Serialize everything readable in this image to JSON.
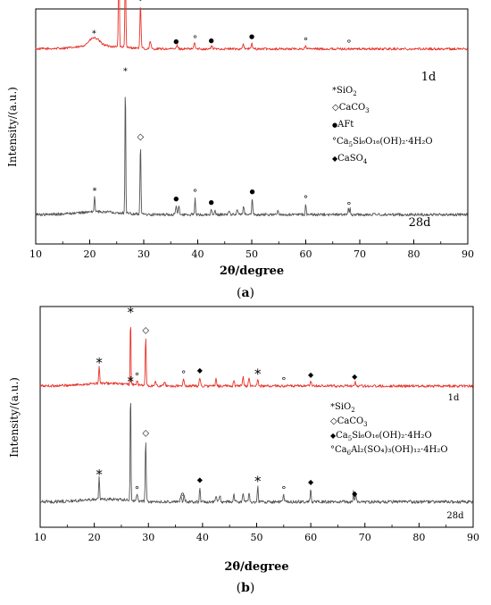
{
  "chart_data": [
    {
      "type": "line",
      "panel_label": "(a)",
      "xlabel": "2θ/degree",
      "ylabel": "Intensity/(a.u.)",
      "xlim": [
        10,
        90
      ],
      "xticks": [
        10,
        20,
        30,
        40,
        50,
        60,
        70,
        80,
        90
      ],
      "series": [
        {
          "name": "1d",
          "color": "#e8332a",
          "baseline": 0.83,
          "noise": 0.01,
          "peaks": [
            [
              20.8,
              0.035,
              1.4
            ],
            [
              25.4,
              0.46,
              0.12
            ],
            [
              26.6,
              0.37,
              0.12
            ],
            [
              29.4,
              0.19,
              0.14
            ],
            [
              31.2,
              0.03,
              0.2
            ],
            [
              36.2,
              0.015,
              0.2
            ],
            [
              39.4,
              0.03,
              0.15
            ],
            [
              42.6,
              0.012,
              0.2
            ],
            [
              48.4,
              0.018,
              0.2
            ],
            [
              50.0,
              0.025,
              0.15
            ],
            [
              60.0,
              0.01,
              0.2
            ]
          ]
        },
        {
          "name": "28d",
          "color": "#555555",
          "baseline": 0.125,
          "noise": 0.012,
          "peaks": [
            [
              20.9,
              0.07,
              0.12
            ],
            [
              26.6,
              0.58,
              0.1
            ],
            [
              29.4,
              0.3,
              0.12
            ],
            [
              36.0,
              0.04,
              0.13
            ],
            [
              36.5,
              0.04,
              0.13
            ],
            [
              39.5,
              0.07,
              0.12
            ],
            [
              42.5,
              0.025,
              0.15
            ],
            [
              43.2,
              0.02,
              0.15
            ],
            [
              45.8,
              0.02,
              0.15
            ],
            [
              47.3,
              0.025,
              0.15
            ],
            [
              48.5,
              0.035,
              0.15
            ],
            [
              50.1,
              0.07,
              0.12
            ],
            [
              54.9,
              0.02,
              0.15
            ],
            [
              60.0,
              0.045,
              0.12
            ],
            [
              67.9,
              0.03,
              0.12
            ],
            [
              68.2,
              0.025,
              0.12
            ]
          ]
        }
      ],
      "markers": [
        {
          "symbol": "◆",
          "x": 25.4,
          "series": 0
        },
        {
          "symbol": "*",
          "x": 26.6,
          "series": 0
        },
        {
          "symbol": "*",
          "x": 20.8,
          "series": 0
        },
        {
          "symbol": "◇",
          "x": 29.4,
          "series": 0
        },
        {
          "symbol": "●",
          "x": 36.0,
          "series": 0
        },
        {
          "symbol": "°",
          "x": 39.5,
          "series": 0
        },
        {
          "symbol": "●",
          "x": 42.5,
          "series": 0
        },
        {
          "symbol": "●",
          "x": 50.0,
          "series": 0
        },
        {
          "symbol": "°",
          "x": 60.0,
          "series": 0
        },
        {
          "symbol": "°",
          "x": 68.0,
          "series": 0
        },
        {
          "symbol": "*",
          "x": 26.6,
          "series": 1
        },
        {
          "symbol": "*",
          "x": 20.9,
          "series": 1
        },
        {
          "symbol": "◇",
          "x": 29.4,
          "series": 1
        },
        {
          "symbol": "●",
          "x": 36.0,
          "series": 1
        },
        {
          "symbol": "°",
          "x": 39.5,
          "series": 1
        },
        {
          "symbol": "●",
          "x": 42.5,
          "series": 1
        },
        {
          "symbol": "●",
          "x": 50.1,
          "series": 1
        },
        {
          "symbol": "°",
          "x": 60.0,
          "series": 1
        },
        {
          "symbol": "°",
          "x": 68.0,
          "series": 1
        }
      ],
      "legend": [
        {
          "symbol": "*",
          "label": "SiO",
          "sub": "2",
          "rest": ""
        },
        {
          "symbol": "◇",
          "label": "CaCO",
          "sub": "3",
          "rest": ""
        },
        {
          "symbol": "●",
          "label": "AFt",
          "sub": "",
          "rest": ""
        },
        {
          "symbol": "°",
          "label": "Ca",
          "sub": "5",
          "rest": "Si₆O₁₆(OH)₂·4H₂O"
        },
        {
          "symbol": "◆",
          "label": "CaSO",
          "sub": "4",
          "rest": ""
        }
      ],
      "series_labels": [
        "1d",
        "28d"
      ]
    },
    {
      "type": "line",
      "panel_label": "(b)",
      "xlabel": "2θ/degree",
      "ylabel": "Intensity/(a.u.)",
      "xlim": [
        10,
        90
      ],
      "xticks": [
        10,
        20,
        30,
        40,
        50,
        60,
        70,
        80,
        90
      ],
      "series": [
        {
          "name": "1d",
          "color": "#e8332a",
          "baseline": 0.64,
          "noise": 0.012,
          "peaks": [
            [
              20.9,
              0.08,
              0.12
            ],
            [
              26.7,
              0.31,
              0.1
            ],
            [
              27.9,
              0.02,
              0.15
            ],
            [
              29.5,
              0.22,
              0.12
            ],
            [
              31.3,
              0.02,
              0.2
            ],
            [
              33.0,
              0.02,
              0.2
            ],
            [
              36.5,
              0.03,
              0.15
            ],
            [
              39.5,
              0.04,
              0.15
            ],
            [
              42.5,
              0.03,
              0.15
            ],
            [
              45.8,
              0.03,
              0.15
            ],
            [
              47.5,
              0.04,
              0.15
            ],
            [
              48.6,
              0.04,
              0.15
            ],
            [
              50.2,
              0.03,
              0.15
            ],
            [
              60.0,
              0.02,
              0.15
            ],
            [
              68.2,
              0.02,
              0.15
            ]
          ]
        },
        {
          "name": "28d",
          "color": "#555555",
          "baseline": 0.115,
          "noise": 0.014,
          "peaks": [
            [
              20.9,
              0.1,
              0.12
            ],
            [
              26.7,
              0.52,
              0.1
            ],
            [
              27.9,
              0.03,
              0.15
            ],
            [
              29.5,
              0.28,
              0.12
            ],
            [
              36.0,
              0.03,
              0.15
            ],
            [
              36.6,
              0.03,
              0.15
            ],
            [
              39.5,
              0.07,
              0.12
            ],
            [
              42.5,
              0.03,
              0.15
            ],
            [
              43.2,
              0.03,
              0.15
            ],
            [
              45.8,
              0.03,
              0.15
            ],
            [
              47.5,
              0.04,
              0.15
            ],
            [
              48.6,
              0.04,
              0.15
            ],
            [
              50.2,
              0.07,
              0.12
            ],
            [
              55.0,
              0.03,
              0.15
            ],
            [
              60.0,
              0.06,
              0.12
            ],
            [
              67.9,
              0.05,
              0.12
            ],
            [
              68.3,
              0.04,
              0.12
            ]
          ]
        }
      ],
      "markers": [
        {
          "symbol": "*",
          "x": 20.9,
          "series": 0
        },
        {
          "symbol": "*",
          "x": 26.7,
          "series": 0
        },
        {
          "symbol": "°",
          "x": 27.9,
          "series": 0
        },
        {
          "symbol": "◇",
          "x": 29.5,
          "series": 0
        },
        {
          "symbol": "°",
          "x": 36.5,
          "series": 0
        },
        {
          "symbol": "◆",
          "x": 39.5,
          "series": 0
        },
        {
          "symbol": "*",
          "x": 50.2,
          "series": 0
        },
        {
          "symbol": "°",
          "x": 55.0,
          "series": 0
        },
        {
          "symbol": "◆",
          "x": 60.0,
          "series": 0
        },
        {
          "symbol": "◆",
          "x": 68.1,
          "series": 0
        },
        {
          "symbol": "*",
          "x": 20.9,
          "series": 1
        },
        {
          "symbol": "*",
          "x": 26.7,
          "series": 1
        },
        {
          "symbol": "°",
          "x": 27.9,
          "series": 1
        },
        {
          "symbol": "◇",
          "x": 29.5,
          "series": 1
        },
        {
          "symbol": "°",
          "x": 36.3,
          "series": 1
        },
        {
          "symbol": "◆",
          "x": 39.5,
          "series": 1
        },
        {
          "symbol": "*",
          "x": 50.2,
          "series": 1
        },
        {
          "symbol": "°",
          "x": 55.0,
          "series": 1
        },
        {
          "symbol": "◆",
          "x": 60.0,
          "series": 1
        },
        {
          "symbol": "◆",
          "x": 68.1,
          "series": 1
        }
      ],
      "legend": [
        {
          "symbol": "*",
          "label": "SiO",
          "sub": "2",
          "rest": ""
        },
        {
          "symbol": "◇",
          "label": "CaCO",
          "sub": "3",
          "rest": ""
        },
        {
          "symbol": "◆",
          "label": "Ca",
          "sub": "5",
          "rest": "Si₆O₁₆(OH)₂·4H₂O"
        },
        {
          "symbol": "°",
          "label": "Ca",
          "sub": "6",
          "rest": "Al₂(SO₄)₃(OH)₁₂·4H₂O"
        }
      ],
      "series_labels": [
        "1d",
        "28d"
      ]
    }
  ]
}
